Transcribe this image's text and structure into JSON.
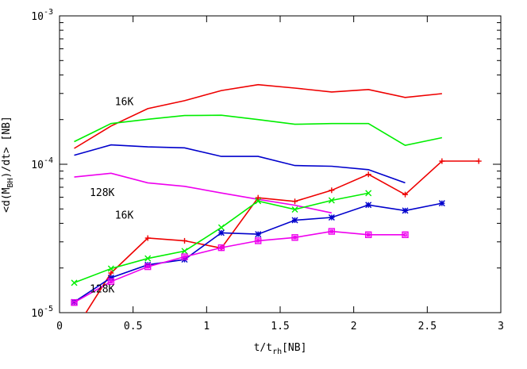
{
  "chart_data": {
    "type": "line",
    "xlabel_main": "t/t",
    "xlabel_sub": "rh",
    "xlabel_tail": "[NB]",
    "ylabel_head": "<d(M",
    "ylabel_sub": "BH",
    "ylabel_tail": ")/dt> [NB]",
    "xlim": [
      0,
      3
    ],
    "ylim": [
      1e-05,
      0.001
    ],
    "yscale": "log",
    "grid": false,
    "x_ticks": [
      {
        "value": 0,
        "label": "0"
      },
      {
        "value": 0.5,
        "label": "0.5"
      },
      {
        "value": 1,
        "label": "1"
      },
      {
        "value": 1.5,
        "label": "1.5"
      },
      {
        "value": 2,
        "label": "2"
      },
      {
        "value": 2.5,
        "label": "2.5"
      },
      {
        "value": 3,
        "label": "3"
      }
    ],
    "y_ticks": [
      {
        "value": 1e-05,
        "mantissa": "10",
        "exponent": "-5"
      },
      {
        "value": 0.0001,
        "mantissa": "10",
        "exponent": "-4"
      },
      {
        "value": 0.001,
        "mantissa": "10",
        "exponent": "-3"
      }
    ],
    "annotations": [
      {
        "text": "16K",
        "x": 0.44,
        "y": 0.00025
      },
      {
        "text": "128K",
        "x": 0.29,
        "y": 6.1e-05
      },
      {
        "text": "16K",
        "x": 0.44,
        "y": 4.3e-05
      },
      {
        "text": "128K",
        "x": 0.29,
        "y": 1.37e-05
      }
    ],
    "series": [
      {
        "color": "#ee0000",
        "marker": "none",
        "x": [
          0.1,
          0.35,
          0.6,
          0.85,
          1.1,
          1.35,
          1.6,
          1.85,
          2.1,
          2.35,
          2.6
        ],
        "y": [
          0.000128,
          0.000181,
          0.000237,
          0.000268,
          0.000314,
          0.000344,
          0.000326,
          0.000307,
          0.000319,
          0.000282,
          0.000299
        ]
      },
      {
        "color": "#00ee00",
        "marker": "none",
        "x": [
          0.1,
          0.35,
          0.6,
          0.85,
          1.1,
          1.35,
          1.6,
          1.85,
          2.1,
          2.35,
          2.6
        ],
        "y": [
          0.000142,
          0.000188,
          0.000201,
          0.000213,
          0.000214,
          0.0002,
          0.000186,
          0.000188,
          0.000188,
          0.000134,
          0.000151
        ]
      },
      {
        "color": "#0000cc",
        "marker": "none",
        "x": [
          0.1,
          0.35,
          0.6,
          0.85,
          1.1,
          1.35,
          1.6,
          1.85,
          2.1,
          2.35
        ],
        "y": [
          0.000115,
          0.000135,
          0.000131,
          0.000129,
          0.000113,
          0.000113,
          9.8e-05,
          9.7e-05,
          9.2e-05,
          7.5e-05
        ]
      },
      {
        "color": "#ee00ee",
        "marker": "none",
        "x": [
          0.1,
          0.35,
          0.6,
          0.85,
          1.1,
          1.35,
          1.6,
          1.85
        ],
        "y": [
          8.2e-05,
          8.7e-05,
          7.5e-05,
          7.1e-05,
          6.4e-05,
          5.8e-05,
          5.3e-05,
          4.7e-05
        ]
      },
      {
        "color": "#ee0000",
        "marker": "plus",
        "x": [
          0.1,
          0.35,
          0.6,
          0.85,
          1.1,
          1.35,
          1.6,
          1.85,
          2.1,
          2.35,
          2.6,
          2.85
        ],
        "y": [
          7.5e-06,
          1.85e-05,
          3.18e-05,
          3.05e-05,
          2.72e-05,
          5.95e-05,
          5.62e-05,
          6.68e-05,
          8.55e-05,
          6.25e-05,
          0.000105,
          0.000105
        ]
      },
      {
        "color": "#00ee00",
        "marker": "x",
        "x": [
          0.1,
          0.35,
          0.6,
          0.85,
          1.1,
          1.35,
          1.6,
          1.85,
          2.1
        ],
        "y": [
          1.59e-05,
          1.98e-05,
          2.32e-05,
          2.6e-05,
          3.75e-05,
          5.65e-05,
          4.96e-05,
          5.71e-05,
          6.39e-05
        ]
      },
      {
        "color": "#0000cc",
        "marker": "star",
        "x": [
          0.1,
          0.35,
          0.6,
          0.85,
          1.1,
          1.35,
          1.6,
          1.85,
          2.1,
          2.35,
          2.6
        ],
        "y": [
          1.18e-05,
          1.72e-05,
          2.1e-05,
          2.28e-05,
          3.45e-05,
          3.38e-05,
          4.2e-05,
          4.38e-05,
          5.32e-05,
          4.87e-05,
          5.46e-05
        ]
      },
      {
        "color": "#ee00ee",
        "marker": "square",
        "x": [
          0.1,
          0.35,
          0.6,
          0.85,
          1.1,
          1.35,
          1.6,
          1.85,
          2.1,
          2.35
        ],
        "y": [
          1.17e-05,
          1.62e-05,
          2.04e-05,
          2.38e-05,
          2.74e-05,
          3.05e-05,
          3.21e-05,
          3.53e-05,
          3.35e-05,
          3.35e-05
        ]
      }
    ]
  }
}
